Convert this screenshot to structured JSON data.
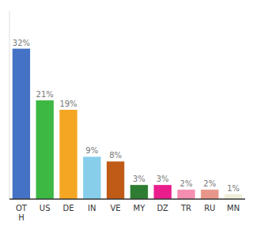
{
  "chart_data": {
    "type": "bar",
    "categories": [
      "OT\nH",
      "US",
      "DE",
      "IN",
      "VE",
      "MY",
      "DZ",
      "TR",
      "RU",
      "MN"
    ],
    "values": [
      32,
      21,
      19,
      9,
      8,
      3,
      3,
      2,
      2,
      1
    ],
    "value_labels": [
      "32%",
      "21%",
      "19%",
      "9%",
      "8%",
      "3%",
      "3%",
      "2%",
      "2%",
      "1%"
    ],
    "colors": [
      "#4472c4",
      "#3cb843",
      "#f5a623",
      "#87ceeb",
      "#bf5b17",
      "#2e7d32",
      "#e91e8c",
      "#f48fb1",
      "#e8968a",
      "#f0edd8"
    ],
    "ylim": [
      0,
      40
    ],
    "data_labels": true,
    "tick_labels": "x",
    "grid": false
  }
}
